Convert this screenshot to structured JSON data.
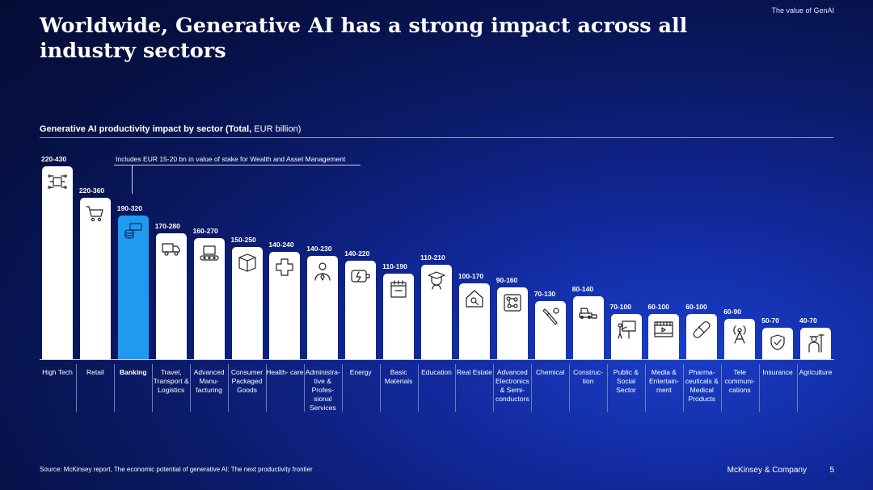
{
  "header": {
    "tag": "The value of GenAI",
    "title": "Worldwide, Generative AI has a strong impact across all industry sectors"
  },
  "chart_data": {
    "type": "bar",
    "title_bold": "Generative AI productivity impact by sector (Total,",
    "title_rest": " EUR billion)",
    "unit": "EUR billion",
    "annotation": "Includes EUR 15-20 bn in value of stake for Wealth and Asset Management",
    "highlight": "Banking",
    "ylim": [
      0,
      430
    ],
    "bars": [
      {
        "label": "High Tech",
        "range": "220-430",
        "low": 220,
        "high": 430,
        "icon": "cpu-network-icon"
      },
      {
        "label": "Retail",
        "range": "220-360",
        "low": 220,
        "high": 360,
        "icon": "shopping-cart-icon"
      },
      {
        "label": "Banking",
        "range": "190-320",
        "low": 190,
        "high": 320,
        "icon": "money-coins-icon"
      },
      {
        "label": "Travel, Transport & Logistics",
        "range": "170-280",
        "low": 170,
        "high": 280,
        "icon": "truck-icon"
      },
      {
        "label": "Advanced Manu- facturing",
        "range": "160-270",
        "low": 160,
        "high": 270,
        "icon": "conveyor-icon"
      },
      {
        "label": "Consumer Packaged Goods",
        "range": "150-250",
        "low": 150,
        "high": 250,
        "icon": "package-icon"
      },
      {
        "label": "Health- care",
        "range": "140-240",
        "low": 140,
        "high": 240,
        "icon": "medical-cross-icon"
      },
      {
        "label": "Administra- tive & Profes- sional Services",
        "range": "140-230",
        "low": 140,
        "high": 230,
        "icon": "businessman-icon"
      },
      {
        "label": "Energy",
        "range": "140-220",
        "low": 140,
        "high": 220,
        "icon": "battery-charge-icon"
      },
      {
        "label": "Basic Materials",
        "range": "110-190",
        "low": 110,
        "high": 190,
        "icon": "material-sheet-icon"
      },
      {
        "label": "Education",
        "range": "110-210",
        "low": 110,
        "high": 210,
        "icon": "graduate-icon"
      },
      {
        "label": "Real Estate",
        "range": "100-170",
        "low": 100,
        "high": 170,
        "icon": "house-search-icon"
      },
      {
        "label": "Advanced Electronics & Semi- conductors",
        "range": "90-160",
        "low": 90,
        "high": 160,
        "icon": "circuit-board-icon"
      },
      {
        "label": "Chemical",
        "range": "70-130",
        "low": 70,
        "high": 130,
        "icon": "flask-tool-icon"
      },
      {
        "label": "Construc- tion",
        "range": "80-140",
        "low": 80,
        "high": 140,
        "icon": "bulldozer-icon"
      },
      {
        "label": "Public & Social Sector",
        "range": "70-100",
        "low": 70,
        "high": 100,
        "icon": "presentation-icon"
      },
      {
        "label": "Media & Entertain- ment",
        "range": "60-100",
        "low": 60,
        "high": 100,
        "icon": "film-icon"
      },
      {
        "label": "Pharma- ceuticals & Medical Products",
        "range": "60-100",
        "low": 60,
        "high": 100,
        "icon": "pill-icon"
      },
      {
        "label": "Tele communi- cations",
        "range": "60-90",
        "low": 60,
        "high": 90,
        "icon": "antenna-icon"
      },
      {
        "label": "Insurance",
        "range": "50-70",
        "low": 50,
        "high": 70,
        "icon": "shield-hand-icon"
      },
      {
        "label": "Agriculture",
        "range": "40-70",
        "low": 40,
        "high": 70,
        "icon": "farmer-icon"
      }
    ]
  },
  "footer": {
    "source": "Source: McKinsey report, The economic potential of generative AI: The next productivity frontier",
    "brand": "McKinsey & Company",
    "page_number": "5"
  }
}
